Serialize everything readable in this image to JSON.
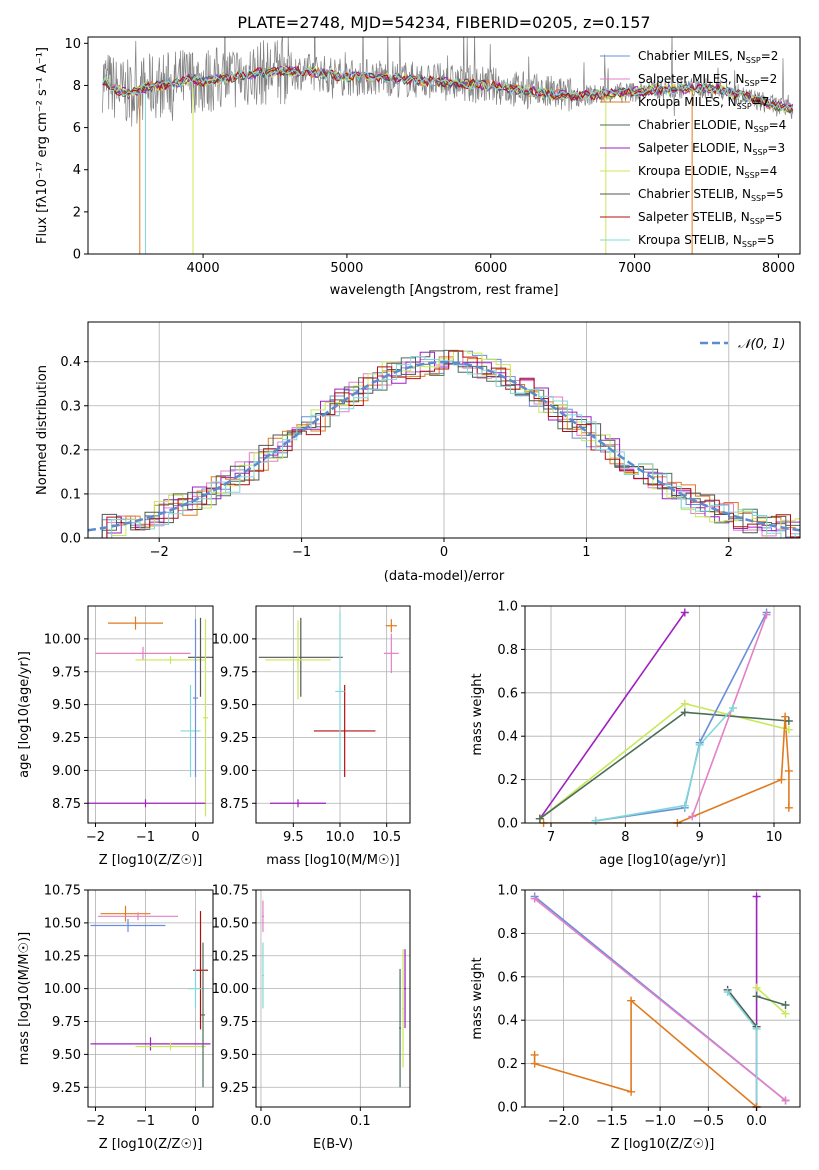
{
  "figure": {
    "title": "PLATE=2748, MJD=54234, FIBERID=0205, z=0.157"
  },
  "colors": {
    "chabrier_miles": "#6a8fd8",
    "salpeter_miles": "#e57fc8",
    "kroupa_miles": "#e07b20",
    "chabrier_elodie": "#4c6e58",
    "salpeter_elodie": "#a020c0",
    "kroupa_elodie": "#c8e858",
    "chabrier_stelib": "#555555",
    "salpeter_stelib": "#b01010",
    "kroupa_stelib": "#80d8d8",
    "spectrum": "#808080",
    "normal_curve": "#5b8bd0",
    "grid": "#b0b0b0"
  },
  "chart_data": [
    {
      "id": "spectrum",
      "type": "line",
      "xlabel": "wavelength [Angstrom, rest frame]",
      "ylabel": "Flux [f_λ 10^-17 erg cm^-2 s^-1 A^-1]",
      "xlim": [
        3200,
        8150
      ],
      "ylim": [
        0,
        10.3
      ],
      "xticks": [
        4000,
        5000,
        6000,
        7000,
        8000
      ],
      "yticks": [
        0,
        2,
        4,
        6,
        8,
        10
      ],
      "grid": false,
      "legend_placement": "top-right",
      "legend": [
        {
          "label": "Chabrier MILES, N",
          "sub": "SSP",
          "suffix": "=2",
          "color_key": "chabrier_miles"
        },
        {
          "label": "Salpeter MILES, N",
          "sub": "SSP",
          "suffix": "=2",
          "color_key": "salpeter_miles"
        },
        {
          "label": "Kroupa MILES, N",
          "sub": "SSP",
          "suffix": "=7",
          "color_key": "kroupa_miles"
        },
        {
          "label": "Chabrier ELODIE, N",
          "sub": "SSP",
          "suffix": "=4",
          "color_key": "chabrier_elodie"
        },
        {
          "label": "Salpeter ELODIE, N",
          "sub": "SSP",
          "suffix": "=3",
          "color_key": "salpeter_elodie"
        },
        {
          "label": "Kroupa ELODIE, N",
          "sub": "SSP",
          "suffix": "=4",
          "color_key": "kroupa_elodie"
        },
        {
          "label": "Chabrier STELIB, N",
          "sub": "SSP",
          "suffix": "=5",
          "color_key": "chabrier_stelib"
        },
        {
          "label": "Salpeter STELIB, N",
          "sub": "SSP",
          "suffix": "=5",
          "color_key": "salpeter_stelib"
        },
        {
          "label": "Kroupa STELIB, N",
          "sub": "SSP",
          "suffix": "=5",
          "color_key": "kroupa_stelib"
        }
      ],
      "continuum": [
        [
          3300,
          8.3
        ],
        [
          3400,
          7.8
        ],
        [
          3500,
          7.6
        ],
        [
          3600,
          7.9
        ],
        [
          3700,
          8.0
        ],
        [
          3800,
          8.1
        ],
        [
          3900,
          8.3
        ],
        [
          4000,
          8.2
        ],
        [
          4200,
          8.4
        ],
        [
          4400,
          8.6
        ],
        [
          4600,
          8.7
        ],
        [
          4800,
          8.6
        ],
        [
          5000,
          8.4
        ],
        [
          5200,
          8.4
        ],
        [
          5400,
          8.3
        ],
        [
          5600,
          8.2
        ],
        [
          5800,
          8.1
        ],
        [
          6000,
          8.0
        ],
        [
          6200,
          7.8
        ],
        [
          6400,
          7.6
        ],
        [
          6600,
          7.5
        ],
        [
          6800,
          7.6
        ],
        [
          7000,
          7.7
        ],
        [
          7200,
          7.8
        ],
        [
          7400,
          7.9
        ],
        [
          7600,
          7.8
        ],
        [
          7800,
          7.4
        ],
        [
          8000,
          7.0
        ],
        [
          8100,
          6.9
        ]
      ],
      "spikes": [
        {
          "x": 3560,
          "y0": 0,
          "y1": 7.6,
          "color_key": "kroupa_miles"
        },
        {
          "x": 3600,
          "y0": 0,
          "y1": 7.6,
          "color_key": "kroupa_stelib"
        },
        {
          "x": 3930,
          "y0": 0,
          "y1": 7.9,
          "color_key": "kroupa_elodie"
        },
        {
          "x": 6800,
          "y0": 0,
          "y1": 7.5,
          "color_key": "kroupa_elodie"
        },
        {
          "x": 7400,
          "y0": 0,
          "y1": 7.9,
          "color_key": "kroupa_miles"
        }
      ]
    },
    {
      "id": "residuals",
      "type": "line",
      "xlabel": "(data-model)/error",
      "ylabel": "Normed distribution",
      "xlim": [
        -2.5,
        2.5
      ],
      "ylim": [
        0,
        0.49
      ],
      "xticks": [
        -2,
        -1,
        0,
        1,
        2
      ],
      "yticks": [
        0.0,
        0.1,
        0.2,
        0.3,
        0.4
      ],
      "grid": true,
      "legend_placement": "top-right",
      "legend": [
        {
          "label": "𝒩(0, 1)",
          "color_key": "normal_curve",
          "dashed": true
        }
      ],
      "normal": {
        "mu": 0,
        "sigma": 1
      }
    },
    {
      "id": "age_vs_Z",
      "type": "scatter",
      "xlabel": "Z [log10(Z/Z☉)]",
      "ylabel": "age [log10(age/yr)]",
      "xlim": [
        -2.15,
        0.35
      ],
      "ylim": [
        8.6,
        10.25
      ],
      "xticks": [
        -2,
        -1,
        0
      ],
      "yticks": [
        8.75,
        9.0,
        9.25,
        9.5,
        9.75,
        10.0
      ],
      "grid": true,
      "points": [
        {
          "x": -1.2,
          "y": 10.12,
          "xerr": 0.55,
          "yerr": 0.05,
          "color_key": "kroupa_miles"
        },
        {
          "x": -1.05,
          "y": 9.89,
          "xerr": 0.95,
          "yerr": 0.05,
          "color_key": "salpeter_miles"
        },
        {
          "x": -0.5,
          "y": 9.84,
          "xerr": 0.7,
          "yerr": 0.03,
          "color_key": "kroupa_elodie"
        },
        {
          "x": 0.1,
          "y": 9.86,
          "xerr": 0.25,
          "yerr": 0.3,
          "color_key": "chabrier_stelib"
        },
        {
          "x": -0.1,
          "y": 9.3,
          "xerr": 0.2,
          "yerr": 0.35,
          "color_key": "kroupa_stelib"
        },
        {
          "x": 0.0,
          "y": 9.55,
          "xerr": 0.05,
          "yerr": 0.6,
          "color_key": "chabrier_miles"
        },
        {
          "x": 0.2,
          "y": 9.4,
          "xerr": 0.05,
          "yerr": 0.75,
          "color_key": "kroupa_elodie"
        },
        {
          "x": -1.0,
          "y": 8.75,
          "xerr": 1.2,
          "yerr": 0.03,
          "color_key": "salpeter_elodie"
        }
      ]
    },
    {
      "id": "age_vs_mass",
      "type": "scatter",
      "xlabel": "mass [log10(M/M☉)]",
      "ylabel": "",
      "xlim": [
        9.1,
        10.75
      ],
      "ylim": [
        8.6,
        10.25
      ],
      "xticks": [
        9.5,
        10.0,
        10.5
      ],
      "yticks": [
        8.75,
        9.0,
        9.25,
        9.5,
        9.75,
        10.0
      ],
      "grid": true,
      "points": [
        {
          "x": 9.58,
          "y": 9.86,
          "xerr": 0.45,
          "yerr": 0.3,
          "color_key": "chabrier_stelib"
        },
        {
          "x": 9.55,
          "y": 9.84,
          "xerr": 0.35,
          "yerr": 0.3,
          "color_key": "kroupa_elodie"
        },
        {
          "x": 10.05,
          "y": 9.3,
          "xerr": 0.33,
          "yerr": 0.35,
          "color_key": "salpeter_stelib"
        },
        {
          "x": 10.0,
          "y": 9.6,
          "xerr": 0.05,
          "yerr": 0.6,
          "color_key": "kroupa_stelib"
        },
        {
          "x": 10.55,
          "y": 10.1,
          "xerr": 0.06,
          "yerr": 0.05,
          "color_key": "kroupa_miles"
        },
        {
          "x": 10.55,
          "y": 9.89,
          "xerr": 0.08,
          "yerr": 0.15,
          "color_key": "salpeter_miles"
        },
        {
          "x": 9.55,
          "y": 8.75,
          "xerr": 0.3,
          "yerr": 0.03,
          "color_key": "salpeter_elodie"
        }
      ]
    },
    {
      "id": "weight_vs_age",
      "type": "line",
      "xlabel": "age [log10(age/yr)]",
      "ylabel": "mass weight",
      "xlim": [
        6.65,
        10.35
      ],
      "ylim": [
        0,
        1.0
      ],
      "xticks": [
        7,
        8,
        9,
        10
      ],
      "yticks": [
        0.0,
        0.2,
        0.4,
        0.6,
        0.8,
        1.0
      ],
      "grid": true,
      "series": [
        {
          "color_key": "salpeter_elodie",
          "points": [
            [
              6.85,
              0.02
            ],
            [
              8.8,
              0.97
            ]
          ]
        },
        {
          "color_key": "kroupa_elodie",
          "points": [
            [
              6.85,
              0.02
            ],
            [
              8.8,
              0.55
            ],
            [
              10.2,
              0.43
            ]
          ]
        },
        {
          "color_key": "chabrier_elodie",
          "points": [
            [
              6.85,
              0.02
            ],
            [
              8.8,
              0.51
            ],
            [
              10.2,
              0.47
            ]
          ]
        },
        {
          "color_key": "chabrier_miles",
          "points": [
            [
              7.6,
              0.01
            ],
            [
              8.8,
              0.07
            ],
            [
              9.0,
              0.37
            ],
            [
              9.9,
              0.97
            ]
          ]
        },
        {
          "color_key": "salpeter_miles",
          "points": [
            [
              8.9,
              0.03
            ],
            [
              9.9,
              0.96
            ]
          ]
        },
        {
          "color_key": "kroupa_stelib",
          "points": [
            [
              7.6,
              0.01
            ],
            [
              8.8,
              0.08
            ],
            [
              9.0,
              0.36
            ],
            [
              9.45,
              0.53
            ]
          ]
        },
        {
          "color_key": "kroupa_miles",
          "points": [
            [
              6.9,
              0.0
            ],
            [
              8.7,
              0.0
            ],
            [
              10.1,
              0.2
            ],
            [
              10.15,
              0.49
            ],
            [
              10.2,
              0.24
            ],
            [
              10.2,
              0.07
            ]
          ]
        }
      ]
    },
    {
      "id": "mass_vs_Z",
      "type": "scatter",
      "xlabel": "Z [log10(Z/Z☉)]",
      "ylabel": "mass [log10(M/M☉)]",
      "xlim": [
        -2.15,
        0.35
      ],
      "ylim": [
        9.1,
        10.75
      ],
      "xticks": [
        -2,
        -1,
        0
      ],
      "yticks": [
        9.25,
        9.5,
        9.75,
        10.0,
        10.25,
        10.5,
        10.75
      ],
      "grid": true,
      "points": [
        {
          "x": -1.4,
          "y": 10.57,
          "xerr": 0.5,
          "yerr": 0.06,
          "color_key": "kroupa_miles"
        },
        {
          "x": -1.15,
          "y": 10.55,
          "xerr": 0.8,
          "yerr": 0.03,
          "color_key": "salpeter_miles"
        },
        {
          "x": -1.35,
          "y": 10.48,
          "xerr": 0.75,
          "yerr": 0.05,
          "color_key": "chabrier_miles"
        },
        {
          "x": 0.1,
          "y": 10.14,
          "xerr": 0.15,
          "yerr": 0.45,
          "color_key": "salpeter_stelib"
        },
        {
          "x": 0.0,
          "y": 10.0,
          "xerr": 0.15,
          "yerr": 0.15,
          "color_key": "kroupa_stelib"
        },
        {
          "x": -0.9,
          "y": 9.58,
          "xerr": 1.2,
          "yerr": 0.05,
          "color_key": "salpeter_elodie"
        },
        {
          "x": -0.5,
          "y": 9.56,
          "xerr": 0.7,
          "yerr": 0.03,
          "color_key": "kroupa_elodie"
        },
        {
          "x": 0.15,
          "y": 9.8,
          "xerr": 0.04,
          "yerr": 0.55,
          "color_key": "chabrier_elodie"
        }
      ]
    },
    {
      "id": "mass_vs_ebv",
      "type": "scatter",
      "xlabel": "E(B-V)",
      "ylabel": "",
      "xlim": [
        -0.005,
        0.15
      ],
      "ylim": [
        9.1,
        10.75
      ],
      "xticks": [
        0.0,
        0.1
      ],
      "yticks": [
        9.25,
        9.5,
        9.75,
        10.0,
        10.25,
        10.5,
        10.75
      ],
      "grid": true,
      "points": [
        {
          "x": 0.002,
          "y": 10.55,
          "xerr": 0.001,
          "yerr": 0.12,
          "color_key": "salpeter_miles"
        },
        {
          "x": 0.002,
          "y": 10.1,
          "xerr": 0.001,
          "yerr": 0.25,
          "color_key": "kroupa_stelib"
        },
        {
          "x": 0.143,
          "y": 9.85,
          "xerr": 0.001,
          "yerr": 0.45,
          "color_key": "kroupa_elodie"
        },
        {
          "x": 0.145,
          "y": 10.0,
          "xerr": 0.001,
          "yerr": 0.3,
          "color_key": "salpeter_elodie"
        },
        {
          "x": 0.14,
          "y": 9.7,
          "xerr": 0.001,
          "yerr": 0.45,
          "color_key": "chabrier_elodie"
        }
      ]
    },
    {
      "id": "weight_vs_Z",
      "type": "line",
      "xlabel": "Z [log10(Z/Z☉)]",
      "ylabel": "mass weight",
      "xlim": [
        -2.4,
        0.45
      ],
      "ylim": [
        0,
        1.0
      ],
      "xticks": [
        -2.0,
        -1.5,
        -1.0,
        -0.5,
        0.0
      ],
      "yticks": [
        0.0,
        0.2,
        0.4,
        0.6,
        0.8,
        1.0
      ],
      "grid": true,
      "series": [
        {
          "color_key": "chabrier_miles",
          "points": [
            [
              -2.3,
              0.97
            ],
            [
              0.3,
              0.03
            ]
          ]
        },
        {
          "color_key": "salpeter_miles",
          "points": [
            [
              -2.3,
              0.96
            ],
            [
              0.3,
              0.03
            ]
          ]
        },
        {
          "color_key": "salpeter_elodie",
          "points": [
            [
              0.0,
              0.97
            ],
            [
              0.0,
              0.0
            ]
          ]
        },
        {
          "color_key": "kroupa_elodie",
          "points": [
            [
              0.0,
              0.55
            ],
            [
              0.3,
              0.43
            ]
          ]
        },
        {
          "color_key": "chabrier_elodie",
          "points": [
            [
              0.0,
              0.51
            ],
            [
              0.3,
              0.47
            ]
          ]
        },
        {
          "color_key": "chabrier_stelib",
          "points": [
            [
              -0.3,
              0.54
            ],
            [
              0.0,
              0.37
            ]
          ]
        },
        {
          "color_key": "kroupa_stelib",
          "points": [
            [
              -0.3,
              0.53
            ],
            [
              0.0,
              0.36
            ],
            [
              0.0,
              0.0
            ]
          ]
        },
        {
          "color_key": "kroupa_miles",
          "points": [
            [
              -2.3,
              0.24
            ],
            [
              -2.3,
              0.2
            ],
            [
              -1.3,
              0.07
            ],
            [
              -1.3,
              0.49
            ],
            [
              0.0,
              0.0
            ]
          ]
        }
      ]
    }
  ]
}
